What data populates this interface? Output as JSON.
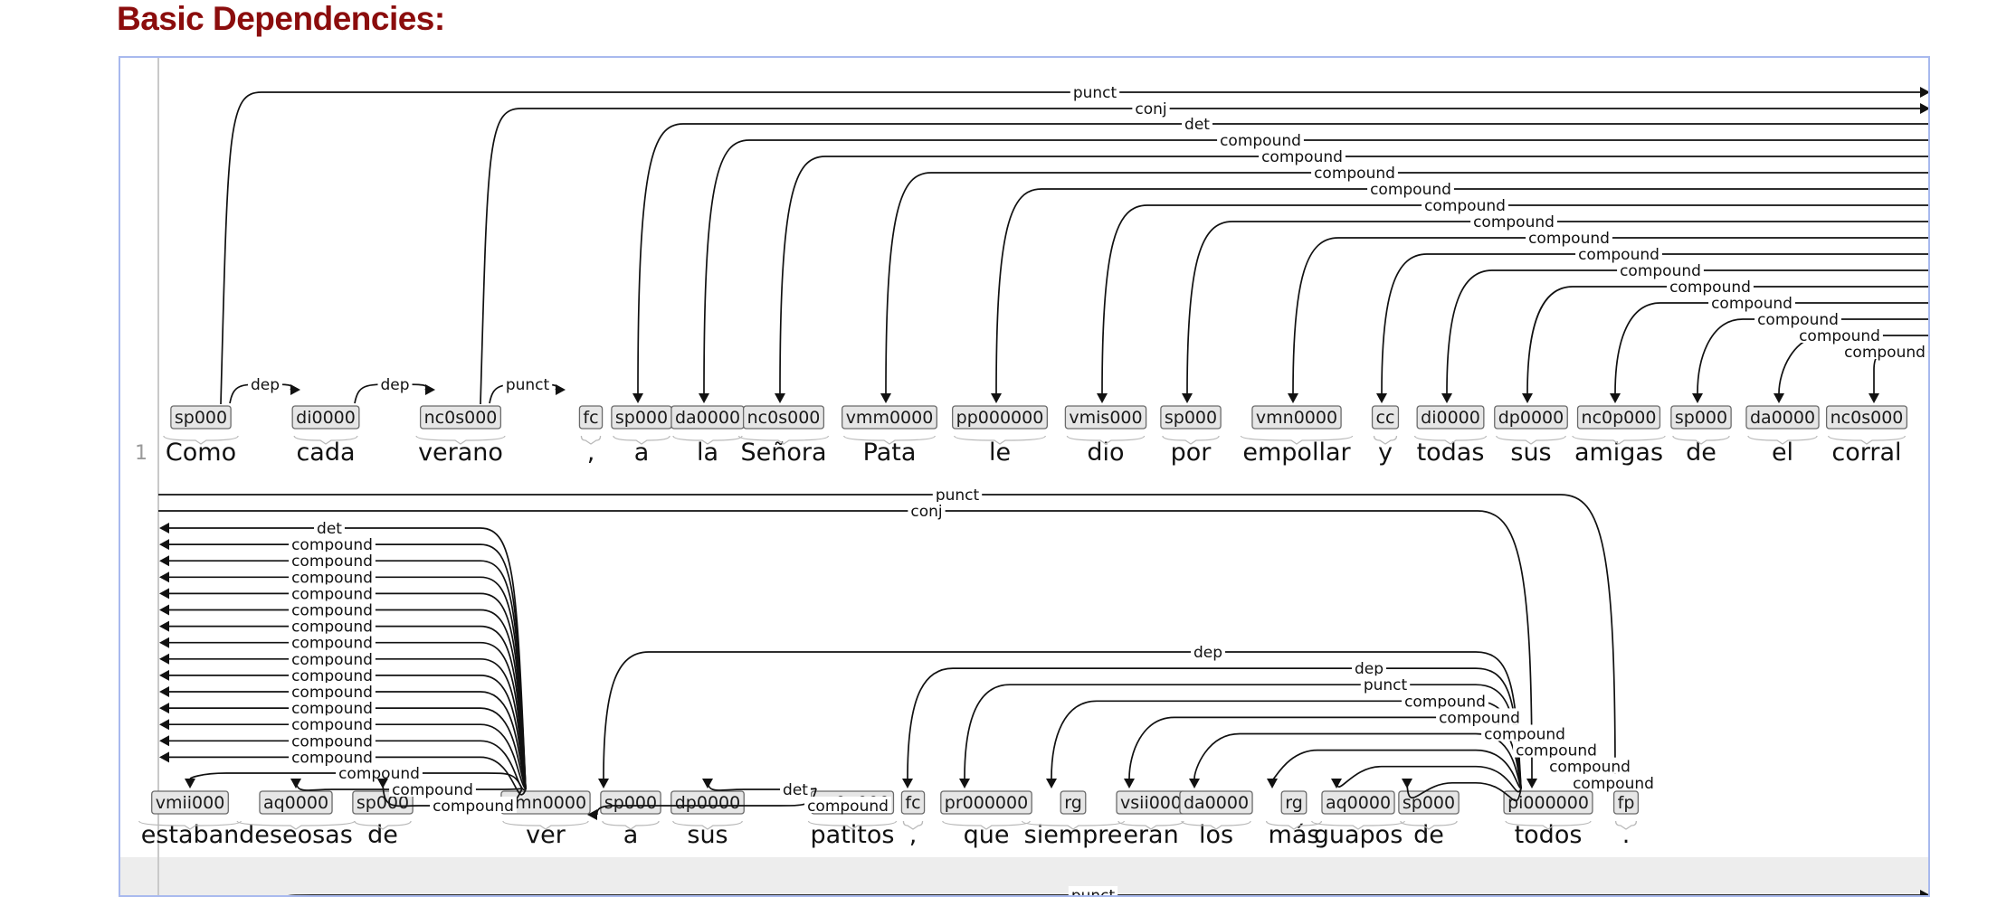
{
  "page": {
    "title": "Basic Dependencies:"
  },
  "sentence": {
    "number": "1"
  },
  "rows": [
    {
      "tokens": [
        {
          "tag": "sp000",
          "word": "Como"
        },
        {
          "tag": "di0000",
          "word": "cada"
        },
        {
          "tag": "nc0s000",
          "word": "verano"
        },
        {
          "tag": "fc",
          "word": ","
        },
        {
          "tag": "sp000",
          "word": "a"
        },
        {
          "tag": "da0000",
          "word": "la"
        },
        {
          "tag": "nc0s000",
          "word": "Señora"
        },
        {
          "tag": "vmm0000",
          "word": "Pata"
        },
        {
          "tag": "pp000000",
          "word": "le"
        },
        {
          "tag": "vmis000",
          "word": "dio"
        },
        {
          "tag": "sp000",
          "word": "por"
        },
        {
          "tag": "vmn0000",
          "word": "empollar"
        },
        {
          "tag": "cc",
          "word": "y"
        },
        {
          "tag": "di0000",
          "word": "todas"
        },
        {
          "tag": "dp0000",
          "word": "sus"
        },
        {
          "tag": "nc0p000",
          "word": "amigas"
        },
        {
          "tag": "sp000",
          "word": "de"
        },
        {
          "tag": "da0000",
          "word": "el"
        },
        {
          "tag": "nc0s000",
          "word": "corral"
        }
      ],
      "local_arcs": [
        {
          "from": 0,
          "to": 1,
          "label": "dep"
        },
        {
          "from": 1,
          "to": 2,
          "label": "dep"
        },
        {
          "from": 2,
          "to": 3,
          "label": "punct"
        }
      ],
      "outgoing_arcs": [
        {
          "tok": 0,
          "label": "punct"
        },
        {
          "tok": 2,
          "label": "conj"
        }
      ],
      "incoming_arcs": [
        {
          "tok": 4,
          "label": "det"
        },
        {
          "tok": 5,
          "label": "compound"
        },
        {
          "tok": 6,
          "label": "compound"
        },
        {
          "tok": 7,
          "label": "compound"
        },
        {
          "tok": 8,
          "label": "compound"
        },
        {
          "tok": 9,
          "label": "compound"
        },
        {
          "tok": 10,
          "label": "compound"
        },
        {
          "tok": 11,
          "label": "compound"
        },
        {
          "tok": 12,
          "label": "compound"
        },
        {
          "tok": 13,
          "label": "compound"
        },
        {
          "tok": 14,
          "label": "compound"
        },
        {
          "tok": 15,
          "label": "compound"
        },
        {
          "tok": 16,
          "label": "compound"
        },
        {
          "tok": 17,
          "label": "compound"
        },
        {
          "tok": 18,
          "label": "compound"
        }
      ]
    },
    {
      "tokens": [
        {
          "tag": "vmii000",
          "word": "estaban"
        },
        {
          "tag": "aq0000",
          "word": "deseosas"
        },
        {
          "tag": "sp000",
          "word": "de"
        },
        {
          "tag": "vmn0000",
          "word": "ver"
        },
        {
          "tag": "sp000",
          "word": "a"
        },
        {
          "tag": "dp0000",
          "word": "sus"
        },
        {
          "tag": "nc0p000",
          "word": "patitos"
        },
        {
          "tag": "fc",
          "word": ","
        },
        {
          "tag": "pr000000",
          "word": "que"
        },
        {
          "tag": "rg",
          "word": "siempre"
        },
        {
          "tag": "vsii000",
          "word": "eran"
        },
        {
          "tag": "da0000",
          "word": "los"
        },
        {
          "tag": "rg",
          "word": "más"
        },
        {
          "tag": "aq0000",
          "word": "guapos"
        },
        {
          "tag": "sp000",
          "word": "de"
        },
        {
          "tag": "pi000000",
          "word": "todos"
        },
        {
          "tag": "fp",
          "word": "."
        }
      ],
      "top_arcs": [
        {
          "to": 16,
          "label": "punct"
        },
        {
          "to": 15,
          "label": "conj"
        }
      ],
      "left_arcs": [
        {
          "from": 3,
          "label": "det"
        },
        {
          "from": 3,
          "label": "compound"
        },
        {
          "from": 3,
          "label": "compound"
        },
        {
          "from": 3,
          "label": "compound"
        },
        {
          "from": 3,
          "label": "compound"
        },
        {
          "from": 3,
          "label": "compound"
        },
        {
          "from": 3,
          "label": "compound"
        },
        {
          "from": 3,
          "label": "compound"
        },
        {
          "from": 3,
          "label": "compound"
        },
        {
          "from": 3,
          "label": "compound"
        },
        {
          "from": 3,
          "label": "compound"
        },
        {
          "from": 3,
          "label": "compound"
        },
        {
          "from": 3,
          "label": "compound"
        },
        {
          "from": 3,
          "label": "compound"
        },
        {
          "from": 3,
          "label": "compound"
        }
      ],
      "local_arcs": [
        {
          "from": 3,
          "to": 0,
          "label": "compound"
        },
        {
          "from": 3,
          "to": 1,
          "label": "compound"
        },
        {
          "from": 3,
          "to": 2,
          "label": "compound"
        },
        {
          "from": 6,
          "to": 5,
          "label": "det"
        },
        {
          "from": 6,
          "to": 3,
          "label": "compound"
        }
      ],
      "todos_arcs": [
        {
          "to": 4,
          "label": "dep"
        },
        {
          "to": 7,
          "label": "dep"
        },
        {
          "to": 8,
          "label": "punct"
        },
        {
          "to": 9,
          "label": "compound"
        },
        {
          "to": 10,
          "label": "compound"
        },
        {
          "to": 11,
          "label": "compound"
        },
        {
          "to": 12,
          "label": "compound"
        },
        {
          "to": 13,
          "label": "compound"
        },
        {
          "to": 14,
          "label": "compound"
        }
      ]
    },
    {
      "top_arcs": [
        {
          "label": "punct"
        }
      ]
    }
  ]
}
